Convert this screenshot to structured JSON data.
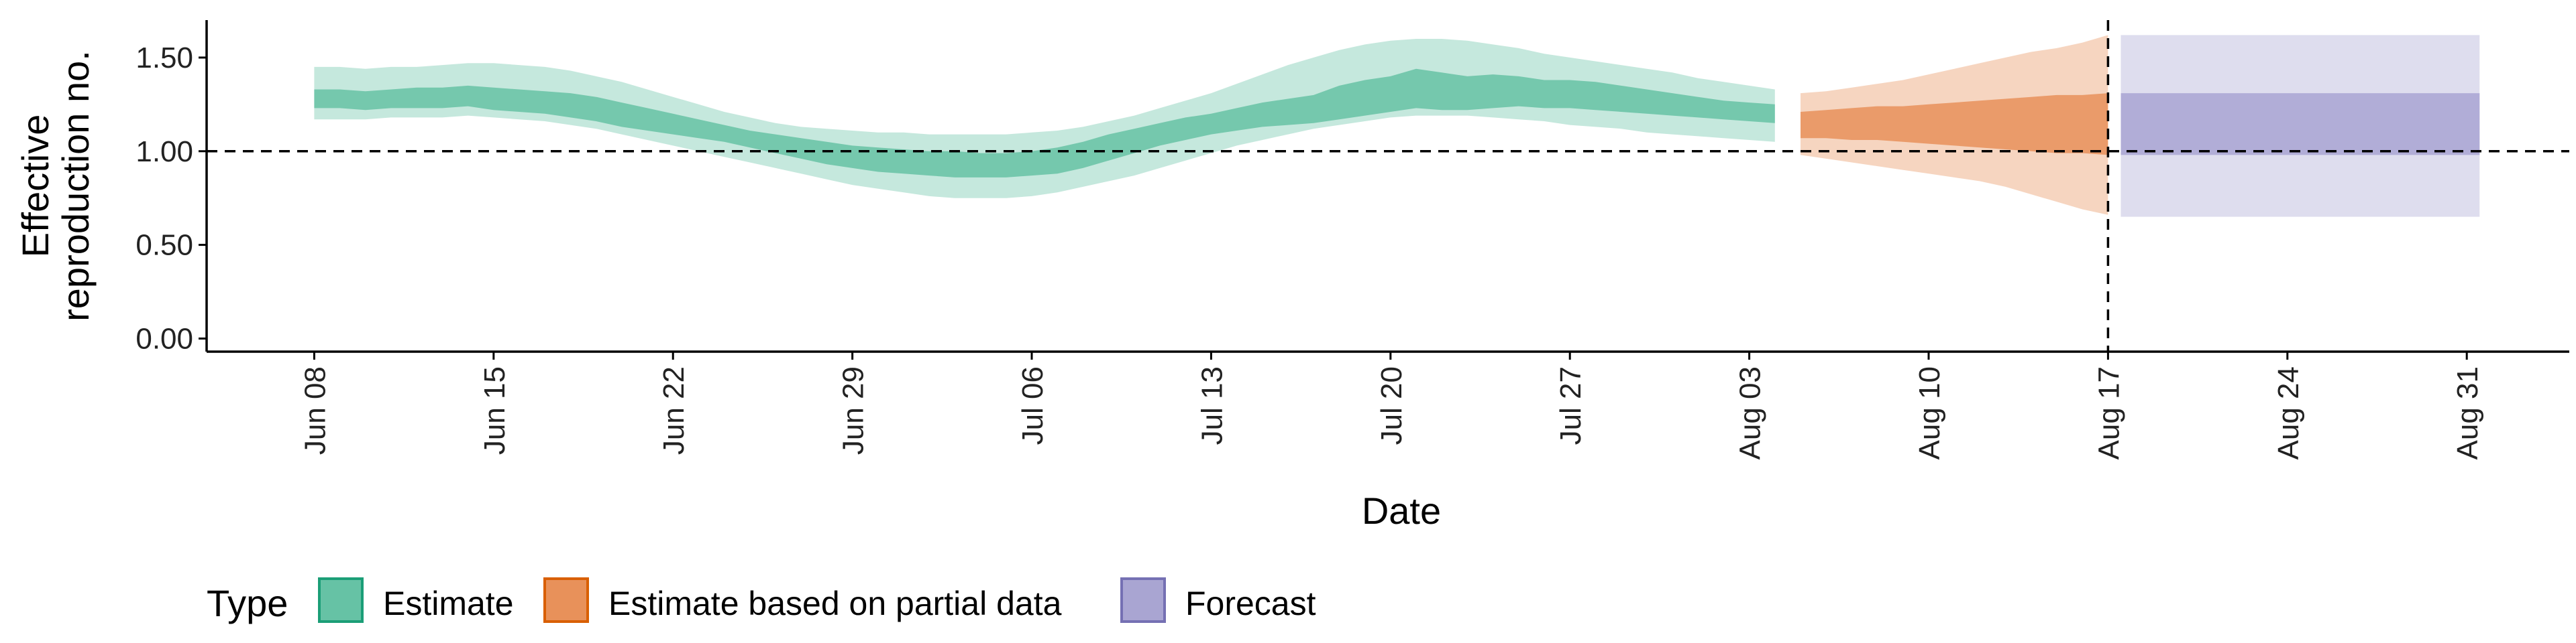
{
  "chart_data": {
    "type": "area",
    "xlabel": "Date",
    "ylabel_lines": [
      "Effective",
      "reproduction no."
    ],
    "x_ticks": [
      "Jun 08",
      "Jun 15",
      "Jun 22",
      "Jun 29",
      "Jul 06",
      "Jul 13",
      "Jul 20",
      "Jul 27",
      "Aug 03",
      "Aug 10",
      "Aug 17",
      "Aug 24",
      "Aug 31"
    ],
    "y_ticks": [
      "0.00",
      "0.50",
      "1.00",
      "1.50"
    ],
    "xlim_days": [
      -4.2,
      88
    ],
    "ylim": [
      -0.07,
      1.7
    ],
    "hline": 1.0,
    "vline_date": "Aug 17",
    "legend": {
      "title": "Type",
      "position": "bottom",
      "items": [
        "Estimate",
        "Estimate based on partial data",
        "Forecast"
      ]
    },
    "colors": {
      "Estimate": "#66c2a5",
      "Estimate based on partial data": "#e8915a",
      "Forecast": "#a9a5d2",
      "Estimate_border": "#1b9e77",
      "Estimate based on partial data_border": "#d95f02",
      "Forecast_border": "#7570b3"
    },
    "series": [
      {
        "name": "Estimate",
        "dates": [
          "Jun 08",
          "Jun 09",
          "Jun 10",
          "Jun 11",
          "Jun 12",
          "Jun 13",
          "Jun 14",
          "Jun 15",
          "Jun 16",
          "Jun 17",
          "Jun 18",
          "Jun 19",
          "Jun 20",
          "Jun 21",
          "Jun 22",
          "Jun 23",
          "Jun 24",
          "Jun 25",
          "Jun 26",
          "Jun 27",
          "Jun 28",
          "Jun 29",
          "Jun 30",
          "Jul 01",
          "Jul 02",
          "Jul 03",
          "Jul 04",
          "Jul 05",
          "Jul 06",
          "Jul 07",
          "Jul 08",
          "Jul 09",
          "Jul 10",
          "Jul 11",
          "Jul 12",
          "Jul 13",
          "Jul 14",
          "Jul 15",
          "Jul 16",
          "Jul 17",
          "Jul 18",
          "Jul 19",
          "Jul 20",
          "Jul 21",
          "Jul 22",
          "Jul 23",
          "Jul 24",
          "Jul 25",
          "Jul 26",
          "Jul 27",
          "Jul 28",
          "Jul 29",
          "Jul 30",
          "Jul 31",
          "Aug 01",
          "Aug 02",
          "Aug 03",
          "Aug 04"
        ],
        "lower90": [
          1.17,
          1.17,
          1.17,
          1.18,
          1.18,
          1.18,
          1.19,
          1.18,
          1.17,
          1.16,
          1.14,
          1.12,
          1.09,
          1.06,
          1.03,
          1.0,
          0.97,
          0.94,
          0.91,
          0.88,
          0.85,
          0.82,
          0.8,
          0.78,
          0.76,
          0.75,
          0.75,
          0.75,
          0.76,
          0.78,
          0.81,
          0.84,
          0.87,
          0.91,
          0.95,
          0.99,
          1.03,
          1.06,
          1.09,
          1.12,
          1.14,
          1.16,
          1.18,
          1.19,
          1.19,
          1.19,
          1.18,
          1.17,
          1.16,
          1.14,
          1.13,
          1.12,
          1.1,
          1.09,
          1.08,
          1.07,
          1.06,
          1.05
        ],
        "upper90": [
          1.45,
          1.45,
          1.44,
          1.45,
          1.45,
          1.46,
          1.47,
          1.47,
          1.46,
          1.45,
          1.43,
          1.4,
          1.37,
          1.33,
          1.29,
          1.25,
          1.21,
          1.18,
          1.15,
          1.13,
          1.12,
          1.11,
          1.1,
          1.1,
          1.09,
          1.09,
          1.09,
          1.09,
          1.1,
          1.11,
          1.13,
          1.16,
          1.19,
          1.23,
          1.27,
          1.31,
          1.36,
          1.41,
          1.46,
          1.5,
          1.54,
          1.57,
          1.59,
          1.6,
          1.6,
          1.59,
          1.57,
          1.55,
          1.52,
          1.5,
          1.48,
          1.46,
          1.44,
          1.42,
          1.39,
          1.37,
          1.35,
          1.33
        ],
        "lower50": [
          1.23,
          1.23,
          1.22,
          1.23,
          1.23,
          1.23,
          1.24,
          1.22,
          1.21,
          1.2,
          1.18,
          1.16,
          1.13,
          1.11,
          1.09,
          1.07,
          1.05,
          1.02,
          0.99,
          0.96,
          0.93,
          0.91,
          0.89,
          0.88,
          0.87,
          0.86,
          0.86,
          0.86,
          0.87,
          0.88,
          0.91,
          0.95,
          0.99,
          1.03,
          1.06,
          1.09,
          1.11,
          1.13,
          1.14,
          1.15,
          1.17,
          1.19,
          1.21,
          1.23,
          1.22,
          1.22,
          1.23,
          1.24,
          1.23,
          1.23,
          1.22,
          1.21,
          1.2,
          1.19,
          1.18,
          1.17,
          1.16,
          1.15
        ],
        "upper50": [
          1.33,
          1.33,
          1.32,
          1.33,
          1.34,
          1.34,
          1.35,
          1.34,
          1.33,
          1.32,
          1.31,
          1.29,
          1.26,
          1.23,
          1.2,
          1.17,
          1.14,
          1.11,
          1.09,
          1.07,
          1.05,
          1.03,
          1.02,
          1.01,
          1.0,
          1.0,
          0.99,
          0.99,
          1.0,
          1.02,
          1.05,
          1.09,
          1.12,
          1.15,
          1.18,
          1.2,
          1.23,
          1.26,
          1.28,
          1.3,
          1.35,
          1.38,
          1.4,
          1.44,
          1.42,
          1.4,
          1.41,
          1.4,
          1.38,
          1.38,
          1.37,
          1.35,
          1.33,
          1.31,
          1.29,
          1.27,
          1.26,
          1.25
        ]
      },
      {
        "name": "Estimate based on partial data",
        "dates": [
          "Aug 05",
          "Aug 06",
          "Aug 07",
          "Aug 08",
          "Aug 09",
          "Aug 10",
          "Aug 11",
          "Aug 12",
          "Aug 13",
          "Aug 14",
          "Aug 15",
          "Aug 16",
          "Aug 17"
        ],
        "lower90": [
          0.98,
          0.96,
          0.94,
          0.92,
          0.9,
          0.88,
          0.86,
          0.84,
          0.81,
          0.77,
          0.73,
          0.69,
          0.66
        ],
        "upper90": [
          1.31,
          1.32,
          1.34,
          1.36,
          1.38,
          1.41,
          1.44,
          1.47,
          1.5,
          1.53,
          1.55,
          1.58,
          1.62
        ],
        "lower50": [
          1.07,
          1.07,
          1.06,
          1.06,
          1.05,
          1.04,
          1.03,
          1.02,
          1.01,
          1.0,
          0.99,
          0.99,
          0.98
        ],
        "upper50": [
          1.21,
          1.22,
          1.23,
          1.24,
          1.24,
          1.25,
          1.26,
          1.27,
          1.28,
          1.29,
          1.3,
          1.3,
          1.31
        ]
      },
      {
        "name": "Forecast",
        "dates": [
          "Aug 18",
          "Aug 31"
        ],
        "lower90": [
          0.65,
          0.65
        ],
        "upper90": [
          1.62,
          1.62
        ],
        "lower50": [
          0.98,
          0.98
        ],
        "upper50": [
          1.31,
          1.31
        ]
      }
    ]
  }
}
